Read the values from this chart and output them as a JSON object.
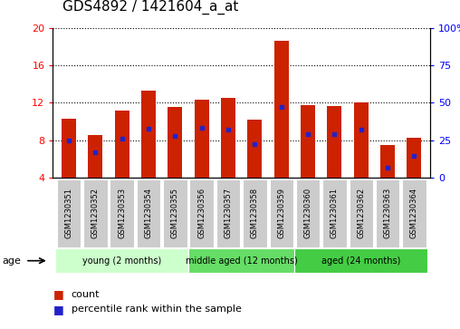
{
  "title": "GDS4892 / 1421604_a_at",
  "samples": [
    "GSM1230351",
    "GSM1230352",
    "GSM1230353",
    "GSM1230354",
    "GSM1230355",
    "GSM1230356",
    "GSM1230357",
    "GSM1230358",
    "GSM1230359",
    "GSM1230360",
    "GSM1230361",
    "GSM1230362",
    "GSM1230363",
    "GSM1230364"
  ],
  "bar_heights": [
    10.3,
    8.6,
    11.2,
    13.3,
    11.6,
    12.3,
    12.5,
    10.2,
    18.6,
    11.8,
    11.7,
    12.0,
    7.5,
    8.3
  ],
  "percentile_vals": [
    8.0,
    6.7,
    8.2,
    9.2,
    8.5,
    9.3,
    9.1,
    7.6,
    11.6,
    8.7,
    8.7,
    9.1,
    5.1,
    6.3
  ],
  "bar_color": "#cc2200",
  "percentile_color": "#2222cc",
  "ylim_left": [
    4,
    20
  ],
  "ylim_right": [
    0,
    100
  ],
  "yticks_left": [
    4,
    8,
    12,
    16,
    20
  ],
  "yticks_right": [
    0,
    25,
    50,
    75,
    100
  ],
  "group_labels": [
    "young (2 months)",
    "middle aged (12 months)",
    "aged (24 months)"
  ],
  "group_starts": [
    0,
    5,
    9
  ],
  "group_ends": [
    5,
    9,
    14
  ],
  "group_colors": [
    "#ccffcc",
    "#66dd66",
    "#44cc44"
  ],
  "age_label": "age",
  "legend_count_label": "count",
  "legend_percentile_label": "percentile rank within the sample",
  "background_plot": "#ffffff",
  "xtick_bg_color": "#cccccc",
  "title_fontsize": 11,
  "bar_width": 0.55
}
